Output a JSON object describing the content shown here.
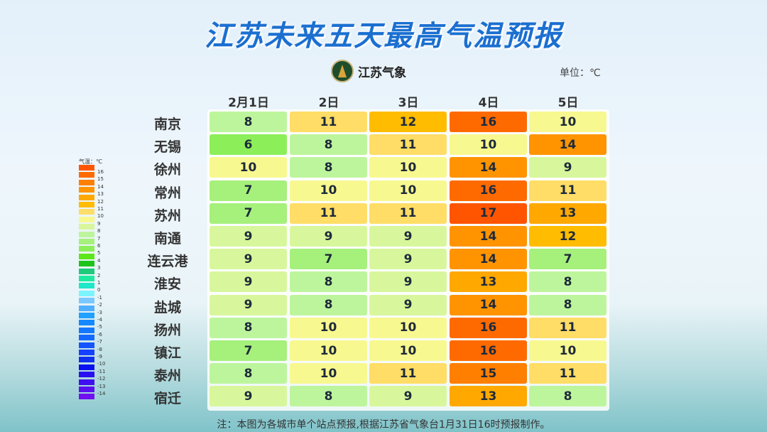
{
  "title": "江苏未来五天最高气温预报",
  "logo_text": "江苏气象",
  "unit": "单位：℃",
  "footnote": "注：本图为各城市单个站点预报,根据江苏省气象台1月31日16时预报制作。",
  "chart_data": {
    "type": "heatmap",
    "title": "江苏未来五天最高气温预报",
    "columns": [
      "2月1日",
      "2日",
      "3日",
      "4日",
      "5日"
    ],
    "rows": [
      "南京",
      "无锡",
      "徐州",
      "常州",
      "苏州",
      "南通",
      "连云港",
      "淮安",
      "盐城",
      "扬州",
      "镇江",
      "泰州",
      "宿迁"
    ],
    "values": [
      [
        8,
        11,
        12,
        16,
        10
      ],
      [
        6,
        8,
        11,
        10,
        14
      ],
      [
        10,
        8,
        10,
        14,
        9
      ],
      [
        7,
        10,
        10,
        16,
        11
      ],
      [
        7,
        11,
        11,
        17,
        13
      ],
      [
        9,
        9,
        9,
        14,
        12
      ],
      [
        9,
        7,
        9,
        14,
        7
      ],
      [
        9,
        8,
        9,
        13,
        8
      ],
      [
        9,
        8,
        9,
        14,
        8
      ],
      [
        8,
        10,
        10,
        16,
        11
      ],
      [
        7,
        10,
        10,
        16,
        10
      ],
      [
        8,
        10,
        11,
        15,
        11
      ],
      [
        9,
        8,
        9,
        13,
        8
      ]
    ],
    "legend": {
      "title": "气温：℃",
      "labels": [
        "16",
        "15",
        "14",
        "13",
        "12",
        "11",
        "10",
        "9",
        "8",
        "7",
        "6",
        "5",
        "4",
        "3",
        "2",
        "1",
        "0",
        "-1",
        "-2",
        "-3",
        "-4",
        "-5",
        "-6",
        "-7",
        "-8",
        "-9",
        "-10",
        "-11",
        "-12",
        "-13",
        "-14"
      ],
      "colors": [
        "#ff5500",
        "#ff6a00",
        "#ff7f00",
        "#ff9400",
        "#ffa800",
        "#ffbc00",
        "#ffdd66",
        "#f8f890",
        "#d8f79c",
        "#bdf59c",
        "#a6f07c",
        "#8cef5a",
        "#5ee61a",
        "#1ec41a",
        "#1ecb7a",
        "#1eeaa0",
        "#1ee8c8",
        "#7af5ff",
        "#7ac8ff",
        "#50b0ff",
        "#20a0ff",
        "#1488ff",
        "#1478ff",
        "#1468ff",
        "#1455ff",
        "#1440ff",
        "#1030f0",
        "#0a10f0",
        "#2810f0",
        "#4010f0",
        "#5a10f0",
        "#7010f0"
      ]
    }
  }
}
